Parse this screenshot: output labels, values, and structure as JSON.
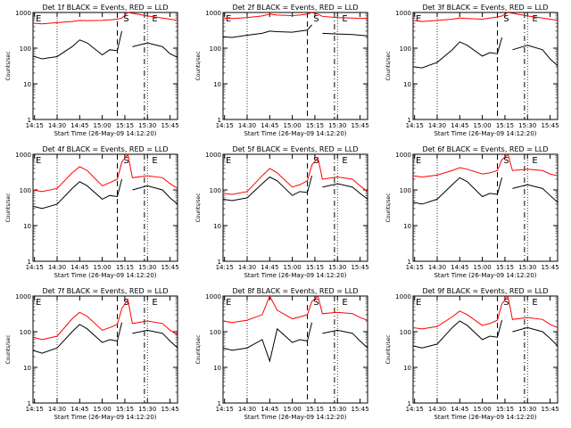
{
  "figure": {
    "start_time_prefix": "Start Time (",
    "start_time_value": "26-May-09 14:12:20",
    "start_time_suffix": ")"
  },
  "chart_data": [
    {
      "type": "line",
      "title": "Det 1f BLACK = Events, RED = LLD",
      "ylabel": "Counts/sec",
      "yscale": "log",
      "ylim": [
        1,
        1000
      ],
      "x_ticks": [
        "14:15",
        "14:30",
        "14:45",
        "15:00",
        "15:15",
        "15:30",
        "15:45"
      ],
      "annotations": [
        "E",
        "S",
        "E"
      ],
      "series": [
        {
          "name": "BLACK",
          "color": "#000000",
          "x": [
            "14:14",
            "14:20",
            "14:30",
            "14:40",
            "14:45",
            "14:50",
            "15:00",
            "15:05",
            "15:10",
            "15:13",
            "15:17",
            "15:20",
            "15:30",
            "15:40",
            "15:45",
            "15:50"
          ],
          "values": [
            60,
            50,
            58,
            110,
            170,
            140,
            65,
            90,
            85,
            300,
            null,
            110,
            140,
            110,
            70,
            55
          ]
        },
        {
          "name": "RED",
          "color": "#ff0000",
          "x": [
            "14:14",
            "14:20",
            "14:30",
            "14:40",
            "14:45",
            "14:50",
            "15:00",
            "15:05",
            "15:10",
            "15:13",
            "15:17",
            "15:20",
            "15:30",
            "15:40",
            "15:45",
            "15:50"
          ],
          "values": [
            500,
            480,
            520,
            560,
            600,
            590,
            600,
            620,
            650,
            700,
            1000,
            950,
            800,
            700,
            650,
            600
          ]
        }
      ]
    },
    {
      "type": "line",
      "title": "Det 2f BLACK = Events, RED = LLD",
      "ylabel": "Counts/sec",
      "yscale": "log",
      "ylim": [
        1,
        1000
      ],
      "x_ticks": [
        "14:15",
        "14:30",
        "14:45",
        "15:00",
        "15:15",
        "15:30",
        "15:45"
      ],
      "annotations": [
        "E",
        "S",
        "E"
      ],
      "series": [
        {
          "name": "BLACK",
          "color": "#000000",
          "x": [
            "14:14",
            "14:20",
            "14:30",
            "14:40",
            "14:45",
            "14:50",
            "15:00",
            "15:05",
            "15:10",
            "15:13",
            "15:17",
            "15:20",
            "15:30",
            "15:40",
            "15:45",
            "15:50"
          ],
          "values": [
            210,
            200,
            230,
            260,
            300,
            290,
            280,
            300,
            320,
            450,
            null,
            260,
            250,
            240,
            230,
            220
          ]
        },
        {
          "name": "RED",
          "color": "#ff0000",
          "x": [
            "14:14",
            "14:20",
            "14:30",
            "14:40",
            "14:45",
            "14:50",
            "15:00",
            "15:05",
            "15:10",
            "15:13",
            "15:17",
            "15:20",
            "15:30",
            "15:40",
            "15:45",
            "15:50"
          ],
          "values": [
            700,
            680,
            720,
            800,
            900,
            850,
            820,
            850,
            900,
            1000,
            900,
            780,
            720,
            700,
            690,
            680
          ]
        }
      ]
    },
    {
      "type": "line",
      "title": "Det 3f BLACK = Events, RED = LLD",
      "ylabel": "Counts/sec",
      "yscale": "log",
      "ylim": [
        1,
        1000
      ],
      "x_ticks": [
        "14:15",
        "14:30",
        "14:45",
        "15:00",
        "15:15",
        "15:30",
        "15:45"
      ],
      "annotations": [
        "E",
        "S",
        "E"
      ],
      "series": [
        {
          "name": "BLACK",
          "color": "#000000",
          "x": [
            "14:14",
            "14:20",
            "14:30",
            "14:40",
            "14:45",
            "14:50",
            "15:00",
            "15:05",
            "15:10",
            "15:13",
            "15:17",
            "15:20",
            "15:30",
            "15:40",
            "15:45",
            "15:50"
          ],
          "values": [
            30,
            28,
            40,
            90,
            150,
            120,
            60,
            75,
            70,
            200,
            null,
            90,
            120,
            90,
            50,
            32
          ]
        },
        {
          "name": "RED",
          "color": "#ff0000",
          "x": [
            "14:14",
            "14:20",
            "14:30",
            "14:40",
            "14:45",
            "14:50",
            "15:00",
            "15:05",
            "15:10",
            "15:13",
            "15:17",
            "15:20",
            "15:30",
            "15:40",
            "15:45",
            "15:50"
          ],
          "values": [
            600,
            560,
            600,
            650,
            700,
            680,
            650,
            700,
            750,
            800,
            1000,
            950,
            800,
            700,
            650,
            600
          ]
        }
      ]
    },
    {
      "type": "line",
      "title": "Det 4f BLACK = Events, RED = LLD",
      "ylabel": "Counts/sec",
      "yscale": "log",
      "ylim": [
        1,
        1000
      ],
      "x_ticks": [
        "14:15",
        "14:30",
        "14:45",
        "15:00",
        "15:15",
        "15:30",
        "15:45"
      ],
      "annotations": [
        "E",
        "S",
        "E"
      ],
      "series": [
        {
          "name": "BLACK",
          "color": "#000000",
          "x": [
            "14:14",
            "14:20",
            "14:30",
            "14:40",
            "14:45",
            "14:50",
            "15:00",
            "15:05",
            "15:10",
            "15:13",
            "15:17",
            "15:20",
            "15:30",
            "15:40",
            "15:45",
            "15:50"
          ],
          "values": [
            35,
            30,
            40,
            110,
            170,
            130,
            55,
            70,
            65,
            200,
            null,
            100,
            130,
            100,
            60,
            40
          ]
        },
        {
          "name": "RED",
          "color": "#ff0000",
          "x": [
            "14:14",
            "14:20",
            "14:30",
            "14:40",
            "14:45",
            "14:50",
            "15:00",
            "15:05",
            "15:10",
            "15:13",
            "15:17",
            "15:20",
            "15:30",
            "15:40",
            "15:45",
            "15:50"
          ],
          "values": [
            100,
            90,
            110,
            300,
            450,
            350,
            130,
            160,
            200,
            600,
            1000,
            220,
            250,
            220,
            150,
            110
          ]
        }
      ]
    },
    {
      "type": "line",
      "title": "Det 5f BLACK = Events, RED = LLD",
      "ylabel": "Counts/sec",
      "yscale": "log",
      "ylim": [
        1,
        1000
      ],
      "x_ticks": [
        "14:15",
        "14:30",
        "14:45",
        "15:00",
        "15:15",
        "15:30",
        "15:45"
      ],
      "annotations": [
        "E",
        "S",
        "E"
      ],
      "series": [
        {
          "name": "BLACK",
          "color": "#000000",
          "x": [
            "14:14",
            "14:20",
            "14:30",
            "14:40",
            "14:45",
            "14:50",
            "15:00",
            "15:05",
            "15:10",
            "15:13",
            "15:17",
            "15:20",
            "15:30",
            "15:40",
            "15:45",
            "15:50"
          ],
          "values": [
            55,
            50,
            60,
            150,
            230,
            180,
            70,
            90,
            85,
            250,
            null,
            120,
            150,
            120,
            80,
            55
          ]
        },
        {
          "name": "RED",
          "color": "#ff0000",
          "x": [
            "14:14",
            "14:20",
            "14:30",
            "14:40",
            "14:45",
            "14:50",
            "15:00",
            "15:05",
            "15:10",
            "15:13",
            "15:17",
            "15:20",
            "15:30",
            "15:40",
            "15:45",
            "15:50"
          ],
          "values": [
            80,
            75,
            90,
            250,
            400,
            300,
            120,
            140,
            180,
            500,
            800,
            200,
            230,
            200,
            130,
            90
          ]
        }
      ]
    },
    {
      "type": "line",
      "title": "Det 6f BLACK = Events, RED = LLD",
      "ylabel": "Counts/sec",
      "yscale": "log",
      "ylim": [
        1,
        1000
      ],
      "x_ticks": [
        "14:15",
        "14:30",
        "14:45",
        "15:00",
        "15:15",
        "15:30",
        "15:45"
      ],
      "annotations": [
        "E",
        "S",
        "E"
      ],
      "series": [
        {
          "name": "BLACK",
          "color": "#000000",
          "x": [
            "14:14",
            "14:20",
            "14:30",
            "14:40",
            "14:45",
            "14:50",
            "15:00",
            "15:05",
            "15:10",
            "15:13",
            "15:17",
            "15:20",
            "15:30",
            "15:40",
            "15:45",
            "15:50"
          ],
          "values": [
            45,
            40,
            55,
            140,
            220,
            170,
            65,
            80,
            75,
            220,
            null,
            110,
            140,
            110,
            70,
            45
          ]
        },
        {
          "name": "RED",
          "color": "#ff0000",
          "x": [
            "14:14",
            "14:20",
            "14:30",
            "14:40",
            "14:45",
            "14:50",
            "15:00",
            "15:05",
            "15:10",
            "15:13",
            "15:17",
            "15:20",
            "15:30",
            "15:40",
            "15:45",
            "15:50"
          ],
          "values": [
            250,
            230,
            260,
            350,
            420,
            380,
            280,
            300,
            350,
            700,
            1000,
            350,
            380,
            350,
            280,
            250
          ]
        }
      ]
    },
    {
      "type": "line",
      "title": "Det 7f BLACK = Events, RED = LLD",
      "ylabel": "Counts/sec",
      "yscale": "log",
      "ylim": [
        1,
        1000
      ],
      "x_ticks": [
        "14:15",
        "14:30",
        "14:45",
        "15:00",
        "15:15",
        "15:30",
        "15:45"
      ],
      "annotations": [
        "E",
        "S",
        "E"
      ],
      "series": [
        {
          "name": "BLACK",
          "color": "#000000",
          "x": [
            "14:14",
            "14:20",
            "14:30",
            "14:40",
            "14:45",
            "14:50",
            "15:00",
            "15:05",
            "15:10",
            "15:13",
            "15:17",
            "15:20",
            "15:30",
            "15:40",
            "15:45",
            "15:50"
          ],
          "values": [
            30,
            25,
            35,
            100,
            160,
            120,
            50,
            60,
            55,
            180,
            null,
            90,
            110,
            90,
            55,
            35
          ]
        },
        {
          "name": "RED",
          "color": "#ff0000",
          "x": [
            "14:14",
            "14:20",
            "14:30",
            "14:40",
            "14:45",
            "14:50",
            "15:00",
            "15:05",
            "15:10",
            "15:13",
            "15:17",
            "15:20",
            "15:30",
            "15:40",
            "15:45",
            "15:50"
          ],
          "values": [
            70,
            60,
            75,
            230,
            350,
            270,
            110,
            130,
            160,
            450,
            800,
            170,
            200,
            170,
            110,
            80
          ]
        }
      ]
    },
    {
      "type": "line",
      "title": "Det 8f BLACK = Events, RED = LLD",
      "ylabel": "Counts/sec",
      "yscale": "log",
      "ylim": [
        1,
        1000
      ],
      "x_ticks": [
        "14:15",
        "14:30",
        "14:45",
        "15:00",
        "15:15",
        "15:30",
        "15:45"
      ],
      "annotations": [
        "E",
        "S",
        "E"
      ],
      "series": [
        {
          "name": "BLACK",
          "color": "#000000",
          "x": [
            "14:14",
            "14:20",
            "14:30",
            "14:40",
            "14:45",
            "14:50",
            "15:00",
            "15:05",
            "15:10",
            "15:13",
            "15:17",
            "15:20",
            "15:30",
            "15:40",
            "15:45",
            "15:50"
          ],
          "values": [
            35,
            30,
            35,
            60,
            15,
            120,
            50,
            60,
            55,
            180,
            null,
            90,
            110,
            90,
            55,
            35
          ]
        },
        {
          "name": "RED",
          "color": "#ff0000",
          "x": [
            "14:14",
            "14:20",
            "14:30",
            "14:40",
            "14:45",
            "14:50",
            "15:00",
            "15:05",
            "15:10",
            "15:13",
            "15:17",
            "15:20",
            "15:30",
            "15:40",
            "15:45",
            "15:50"
          ],
          "values": [
            200,
            180,
            210,
            300,
            1000,
            400,
            230,
            260,
            300,
            700,
            1000,
            320,
            350,
            320,
            250,
            210
          ]
        }
      ]
    },
    {
      "type": "line",
      "title": "Det 9f BLACK = Events, RED = LLD",
      "ylabel": "Counts/sec",
      "yscale": "log",
      "ylim": [
        1,
        1000
      ],
      "x_ticks": [
        "14:15",
        "14:30",
        "14:45",
        "15:00",
        "15:15",
        "15:30",
        "15:45"
      ],
      "annotations": [
        "E",
        "S",
        "E"
      ],
      "series": [
        {
          "name": "BLACK",
          "color": "#000000",
          "x": [
            "14:14",
            "14:20",
            "14:30",
            "14:40",
            "14:45",
            "14:50",
            "15:00",
            "15:05",
            "15:10",
            "15:13",
            "15:17",
            "15:20",
            "15:30",
            "15:40",
            "15:45",
            "15:50"
          ],
          "values": [
            40,
            35,
            45,
            130,
            200,
            150,
            60,
            75,
            70,
            210,
            null,
            100,
            130,
            100,
            65,
            40
          ]
        },
        {
          "name": "RED",
          "color": "#ff0000",
          "x": [
            "14:14",
            "14:20",
            "14:30",
            "14:40",
            "14:45",
            "14:50",
            "15:00",
            "15:05",
            "15:10",
            "15:13",
            "15:17",
            "15:20",
            "15:30",
            "15:40",
            "15:45",
            "15:50"
          ],
          "values": [
            130,
            120,
            140,
            260,
            380,
            300,
            150,
            170,
            210,
            600,
            1000,
            220,
            250,
            220,
            160,
            130
          ]
        }
      ]
    }
  ]
}
